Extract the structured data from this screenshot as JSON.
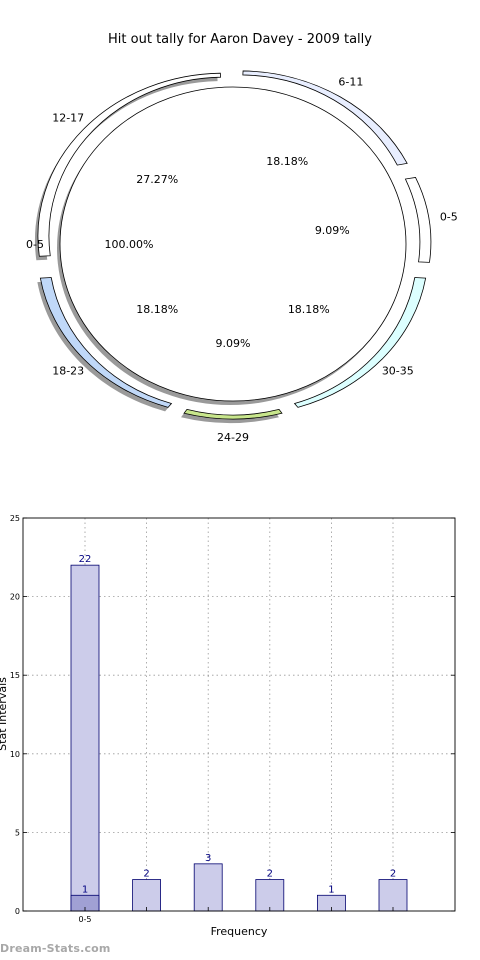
{
  "watermark": "Dream-Stats.com",
  "chart_data": [
    {
      "type": "pie",
      "title": "Hit out tally for Aaron Davey - 2009 tally",
      "inner": {
        "labels": [
          "0-5"
        ],
        "values": [
          100.0
        ],
        "pct_labels": [
          "100.00%"
        ],
        "colors": [
          "#ffffff"
        ]
      },
      "outer": {
        "labels": [
          "6-11",
          "0-5",
          "30-35",
          "24-29",
          "18-23",
          "12-17"
        ],
        "values": [
          18.18,
          9.09,
          18.18,
          9.09,
          18.18,
          27.27
        ],
        "pct_labels": [
          "18.18%",
          "9.09%",
          "18.18%",
          "9.09%",
          "18.18%",
          "27.27%"
        ],
        "colors": [
          "#e8eeff",
          "#ffffff",
          "#dcffff",
          "#c8e68c",
          "#c0d8f8",
          "#ffffff"
        ]
      }
    },
    {
      "type": "bar",
      "xlabel": "Frequency",
      "ylabel": "Stat Intervals",
      "ylim": [
        0,
        25
      ],
      "yticks": [
        0,
        5,
        10,
        15,
        20,
        25
      ],
      "grid": true,
      "categories": [
        "0-5",
        "",
        "",
        "",
        "",
        ""
      ],
      "series": [
        {
          "values": [
            22,
            2,
            3,
            2,
            1,
            2
          ],
          "value_labels": [
            "22",
            "2",
            "3",
            "2",
            "1",
            "2"
          ],
          "color": "#ccccea"
        },
        {
          "values": [
            1,
            0,
            0,
            0,
            0,
            0
          ],
          "value_labels": [
            "1",
            "",
            "",
            "",
            "",
            ""
          ],
          "color": "#a0a0d4"
        }
      ]
    }
  ]
}
